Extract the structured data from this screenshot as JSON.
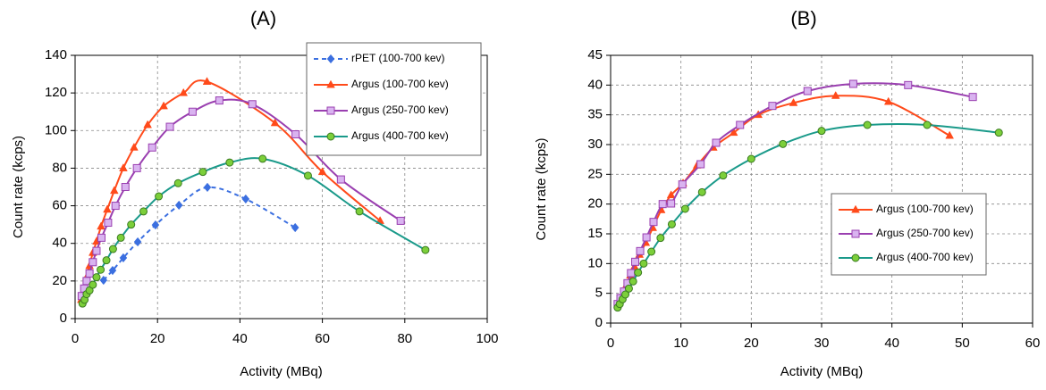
{
  "chart_data": [
    {
      "type": "line",
      "title": "(A)",
      "x_label": "Activity (MBq)",
      "y_label": "Count rate (kcps)",
      "xlim": [
        0,
        100
      ],
      "xticks": [
        0,
        20,
        40,
        60,
        80,
        100
      ],
      "ylim": [
        0,
        140
      ],
      "yticks": [
        0,
        20,
        40,
        60,
        80,
        100,
        120,
        140
      ],
      "grid": true,
      "legend": "upper right",
      "series": [
        {
          "name": "rPET (100-700 kev)",
          "color": "#3b6fe0",
          "marker": "diamond",
          "marker_color": "#3b6fe0",
          "dash": true,
          "x": [
            6.9,
            9.1,
            11.7,
            15.2,
            19.5,
            25.2,
            32.1,
            41.4,
            53.4
          ],
          "values": [
            20.4,
            25.6,
            32.3,
            40.8,
            49.8,
            60.3,
            69.8,
            63.6,
            48.4
          ]
        },
        {
          "name": "Argus (100-700 kev)",
          "color": "#ff4a1a",
          "marker": "triangle",
          "marker_color": "#ff4a1a",
          "dash": false,
          "x": [
            1.5,
            2,
            2.8,
            3.5,
            4.3,
            5.2,
            6.3,
            7.8,
            9.5,
            11.7,
            14.3,
            17.6,
            21.5,
            26.3,
            32,
            48.5,
            60,
            74
          ],
          "values": [
            10,
            14,
            22,
            28,
            35,
            41,
            49,
            58,
            68,
            80,
            91,
            103,
            113,
            120,
            126,
            104,
            78,
            52
          ]
        },
        {
          "name": "Argus (250-700 kev)",
          "color": "#9a3fb0",
          "marker": "square",
          "marker_color": "#d9b3f0",
          "dash": false,
          "x": [
            1.6,
            2.2,
            2.8,
            3.5,
            4.3,
            5.2,
            6.4,
            8,
            9.8,
            12.2,
            15,
            18.7,
            23,
            28.5,
            35,
            43,
            53.5,
            64.5,
            79
          ],
          "values": [
            12,
            16,
            20,
            24,
            30,
            36,
            43,
            51,
            60,
            70,
            80,
            91,
            102,
            110,
            116,
            114,
            98,
            74,
            52
          ]
        },
        {
          "name": "Argus (400-700 kev)",
          "color": "#1a9a8a",
          "marker": "circle",
          "marker_color": "#7ccf3a",
          "dash": false,
          "x": [
            1.8,
            2.3,
            2.8,
            3.5,
            4.3,
            5.2,
            6.2,
            7.6,
            9.2,
            11.1,
            13.6,
            16.6,
            20.3,
            25,
            31,
            37.5,
            45.5,
            56.5,
            69,
            85
          ],
          "values": [
            8,
            10,
            13,
            15,
            18,
            22,
            26,
            31,
            37,
            43,
            50,
            57,
            65,
            72,
            78,
            83,
            85,
            76,
            57,
            36.5
          ]
        }
      ]
    },
    {
      "type": "line",
      "title": "(B)",
      "x_label": "Activity (MBq)",
      "y_label": "Count rate (kcps)",
      "xlim": [
        0,
        60
      ],
      "xticks": [
        0,
        10,
        20,
        30,
        40,
        50,
        60
      ],
      "ylim": [
        0,
        45
      ],
      "yticks": [
        0,
        5,
        10,
        15,
        20,
        25,
        30,
        35,
        40,
        45
      ],
      "grid": true,
      "legend": "center right",
      "series": [
        {
          "name": "Argus (100-700 kev)",
          "color": "#ff4a1a",
          "marker": "triangle",
          "marker_color": "#ff4a1a",
          "dash": false,
          "x": [
            1,
            1.4,
            1.8,
            2.3,
            2.8,
            3.4,
            4.1,
            5,
            6,
            7.2,
            8.6,
            10.3,
            12.3,
            14.6,
            17.5,
            21,
            26,
            32,
            39.5,
            48.2
          ],
          "values": [
            3,
            4,
            5,
            6.5,
            8,
            9.5,
            11.5,
            13.5,
            16,
            19,
            21.5,
            23.5,
            26.5,
            29.5,
            32,
            35,
            37,
            38.2,
            37.2,
            31.5
          ]
        },
        {
          "name": "Argus (250-700 kev)",
          "color": "#9a3fb0",
          "marker": "square",
          "marker_color": "#d9b3f0",
          "dash": false,
          "x": [
            1,
            1.4,
            1.9,
            2.4,
            2.9,
            3.5,
            4.2,
            5.1,
            6.1,
            7.4,
            8.6,
            10.2,
            12.8,
            15,
            18.4,
            23,
            28,
            34.5,
            42.3,
            51.5
          ],
          "values": [
            3.2,
            4.2,
            5.3,
            6.7,
            8.4,
            10.3,
            12.1,
            14.4,
            17,
            20,
            20.1,
            23.3,
            26.7,
            30.3,
            33.3,
            36.5,
            39,
            40.2,
            40,
            38
          ]
        },
        {
          "name": "Argus (400-700 kev)",
          "color": "#1a9a8a",
          "marker": "circle",
          "marker_color": "#7ccf3a",
          "dash": false,
          "x": [
            1,
            1.3,
            1.7,
            2.1,
            2.6,
            3.2,
            3.9,
            4.7,
            5.8,
            7.1,
            8.7,
            10.6,
            13,
            16,
            20,
            24.5,
            30,
            36.5,
            45,
            55.2
          ],
          "values": [
            2.6,
            3.2,
            4,
            4.8,
            5.8,
            7,
            8.5,
            10,
            12,
            14.3,
            16.6,
            19.2,
            22,
            24.8,
            27.6,
            30.1,
            32.3,
            33.3,
            33.3,
            32
          ]
        }
      ]
    }
  ]
}
